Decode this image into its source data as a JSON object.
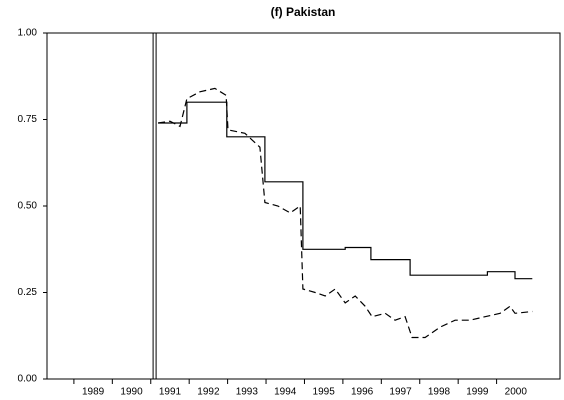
{
  "chart_data": {
    "type": "line",
    "title": "(f) Pakistan",
    "xlim": [
      1988.3,
      2001.65
    ],
    "xticks": [
      1989,
      1990,
      1991,
      1992,
      1993,
      1994,
      1995,
      1996,
      1997,
      1998,
      1999,
      2000
    ],
    "ylim": [
      0,
      1
    ],
    "yticks": [
      {
        "value": 0,
        "label": "0.00"
      },
      {
        "value": 0.25,
        "label": "0.25"
      },
      {
        "value": 0.5,
        "label": "0.50"
      },
      {
        "value": 0.75,
        "label": "0.75"
      },
      {
        "value": 1,
        "label": "1.00"
      }
    ],
    "vlines": [
      1991.1
    ],
    "series": [
      {
        "color": "#000000",
        "dash": false,
        "x": [
          1991.19,
          1991.94,
          1991.94,
          1992.98,
          1992.98,
          1993.97,
          1993.97,
          1994.96,
          1994.96,
          1996.06,
          1996.06,
          1996.73,
          1996.73,
          1997.75,
          1997.75,
          1999.76,
          1999.76,
          2000.48,
          2000.48,
          2000.93
        ],
        "values": [
          0.74,
          0.74,
          0.8,
          0.8,
          0.7,
          0.7,
          0.57,
          0.57,
          0.375,
          0.375,
          0.38,
          0.38,
          0.345,
          0.345,
          0.3,
          0.3,
          0.31,
          0.31,
          0.29,
          0.29
        ]
      },
      {
        "color": "#000000",
        "dash": true,
        "x": [
          1991.19,
          1991.5,
          1991.76,
          1991.94,
          1992.28,
          1992.67,
          1992.96,
          1993.01,
          1993.45,
          1993.84,
          1993.97,
          1994.31,
          1994.63,
          1994.89,
          1994.96,
          1995.28,
          1995.54,
          1995.8,
          1996.06,
          1996.32,
          1996.58,
          1996.76,
          1997.1,
          1997.36,
          1997.62,
          1997.8,
          1998.14,
          1998.53,
          1998.92,
          1999.31,
          1999.7,
          2000.09,
          2000.35,
          2000.48,
          2000.93
        ],
        "values": [
          0.74,
          0.745,
          0.73,
          0.81,
          0.83,
          0.84,
          0.82,
          0.72,
          0.71,
          0.67,
          0.51,
          0.5,
          0.48,
          0.5,
          0.26,
          0.25,
          0.24,
          0.26,
          0.22,
          0.24,
          0.21,
          0.18,
          0.19,
          0.17,
          0.18,
          0.12,
          0.12,
          0.15,
          0.17,
          0.17,
          0.18,
          0.19,
          0.21,
          0.19,
          0.195
        ]
      }
    ]
  }
}
